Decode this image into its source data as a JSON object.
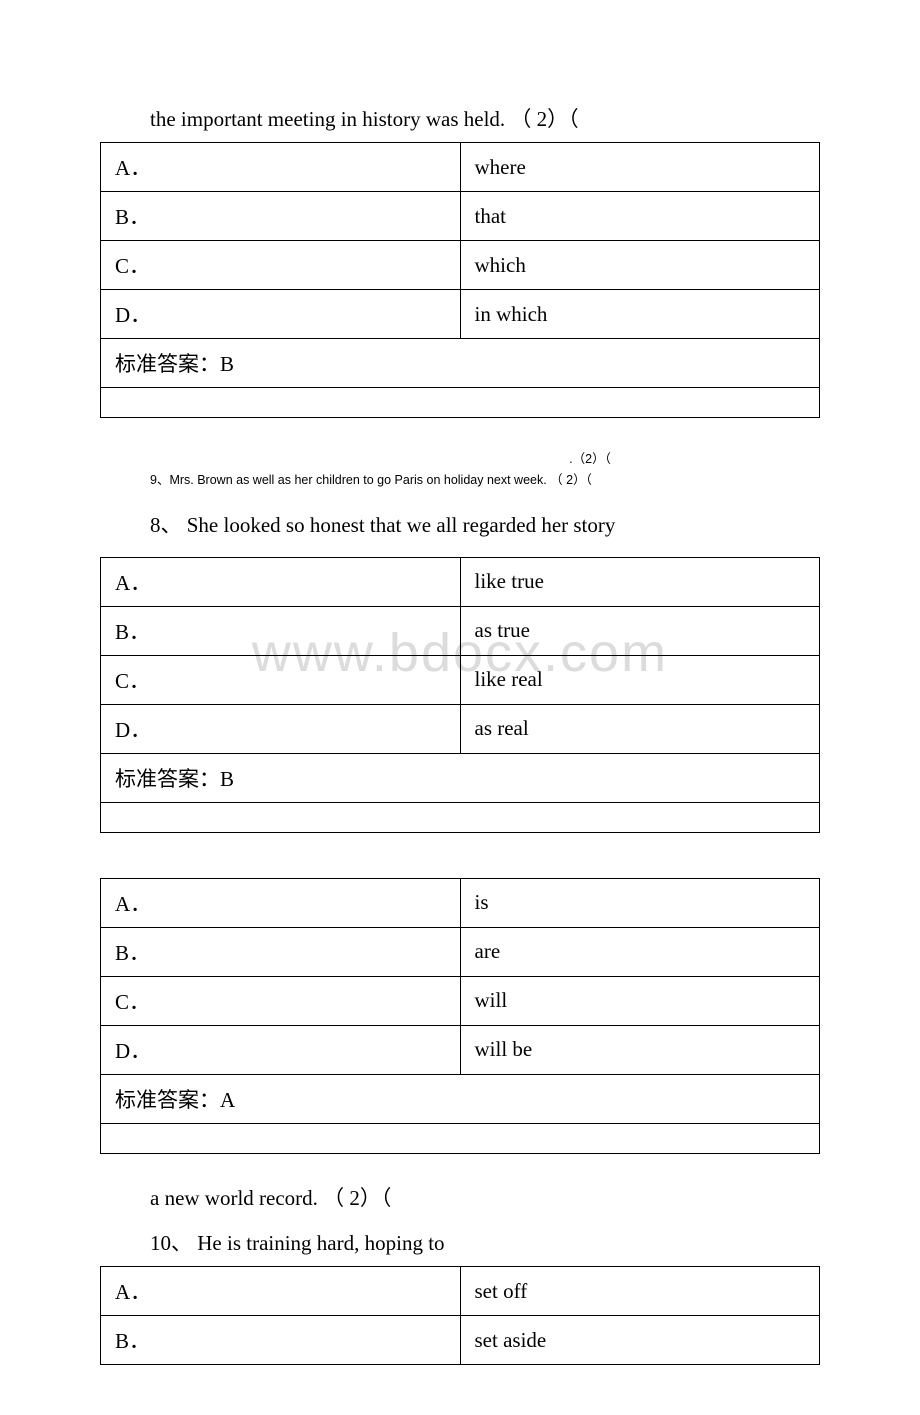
{
  "watermark": "www.bdocx.com",
  "q7": {
    "text": "the important meeting in history was held. （ 2）（",
    "options": {
      "A": "where",
      "B": "that",
      "C": "which",
      "D": "in which"
    },
    "answer_label": "标准答案：",
    "answer": "B"
  },
  "inter1": {
    "line1": ".（2）（",
    "line2": "9、Mrs. Brown as well as her children           to go Paris on holiday next week. （ 2）（"
  },
  "q8": {
    "text": "8、 She looked so honest that we all regarded her story",
    "options": {
      "A": "like true",
      "B": "as true",
      "C": "like real",
      "D": "as real"
    },
    "answer_label": "标准答案：",
    "answer": "B"
  },
  "q9": {
    "options": {
      "A": "is",
      "B": "are",
      "C": "will",
      "D": "will be"
    },
    "answer_label": "标准答案：",
    "answer": "A"
  },
  "q10": {
    "pretext": "a new world record. （ 2）（",
    "text": "10、 He is training hard, hoping to",
    "options": {
      "A": "set off",
      "B": "set aside"
    }
  },
  "labels": {
    "A": "A．",
    "B": "B．",
    "C": "C．",
    "D": "D．"
  }
}
